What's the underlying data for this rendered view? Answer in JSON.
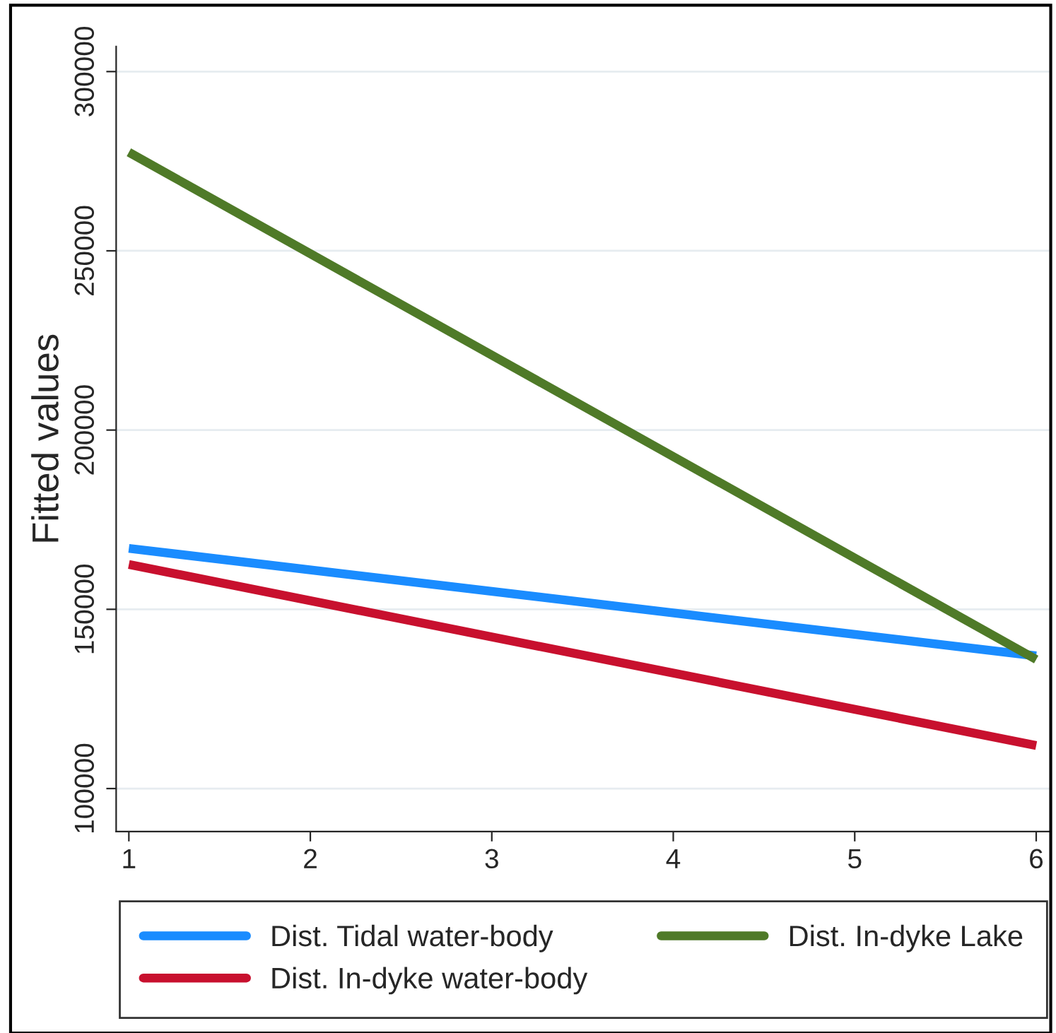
{
  "chart_data": {
    "type": "line",
    "ylabel": "Fitted values",
    "x": [
      1,
      6
    ],
    "series": [
      {
        "name": "Dist. Tidal water-body",
        "color": "#1a8cff",
        "values": [
          167000,
          137000
        ]
      },
      {
        "name": "Dist. In-dyke water-body",
        "color": "#c8102e",
        "values": [
          162500,
          112000
        ]
      },
      {
        "name": "Dist. In-dyke Lake",
        "color": "#4f7a28",
        "values": [
          277500,
          136000
        ]
      }
    ],
    "xlim": [
      0.93,
      6.08
    ],
    "xticks": [
      1,
      2,
      3,
      4,
      5,
      6
    ],
    "ylim": [
      88000,
      307000
    ],
    "yticks": [
      100000,
      150000,
      200000,
      250000,
      300000
    ],
    "grid": "y",
    "legend": "bottom",
    "marker": "none",
    "line_style": "solid"
  }
}
